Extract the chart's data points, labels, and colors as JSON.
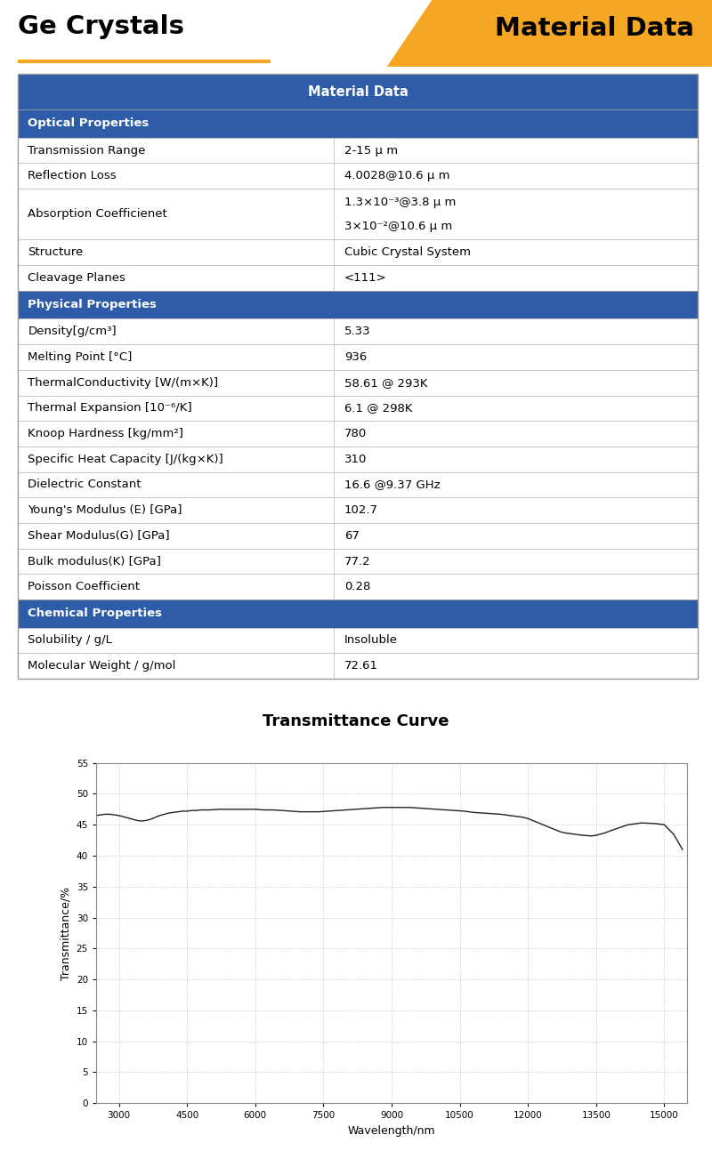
{
  "title_left": "Ge Crystals",
  "title_right": "Material Data",
  "header_bg": "#2e5ca8",
  "section_bg": "#2e5ca8",
  "orange_color": "#f5a623",
  "table_header": "Material Data",
  "sections": [
    {
      "name": "Optical Properties",
      "rows": [
        [
          "Transmission Range",
          "2-15 μ m"
        ],
        [
          "Reflection Loss",
          "4.0028@10.6 μ m"
        ],
        [
          "Absorption Coefficienet",
          "1.3×10⁻³@3.8 μ m\n3×10⁻²@10.6 μ m"
        ],
        [
          "Structure",
          "Cubic Crystal System"
        ],
        [
          "Cleavage Planes",
          "<111>"
        ]
      ]
    },
    {
      "name": "Physical Properties",
      "rows": [
        [
          "Density[g/cm³]",
          "5.33"
        ],
        [
          "Melting Point [°C]",
          "936"
        ],
        [
          "ThermalConductivity [W/(m×K)]",
          "58.61 @ 293K"
        ],
        [
          "Thermal Expansion [10⁻⁶/K]",
          "6.1 @ 298K"
        ],
        [
          "Knoop Hardness [kg/mm²]",
          "780"
        ],
        [
          "Specific Heat Capacity [J/(kg×K)]",
          "310"
        ],
        [
          "Dielectric Constant",
          "16.6 @9.37 GHz"
        ],
        [
          "Young's Modulus (E) [GPa]",
          "102.7"
        ],
        [
          "Shear Modulus(G) [GPa]",
          "67"
        ],
        [
          "Bulk modulus(K) [GPa]",
          "77.2"
        ],
        [
          "Poisson Coefficient",
          "0.28"
        ]
      ]
    },
    {
      "name": "Chemical Properties",
      "rows": [
        [
          "Solubility / g/L",
          "Insoluble"
        ],
        [
          "Molecular Weight / g/mol",
          "72.61"
        ]
      ]
    }
  ],
  "chart_title": "Transmittance Curve",
  "xlabel": "Wavelength/nm",
  "ylabel": "Transmittance/%",
  "xmin": 2500,
  "xmax": 15500,
  "xticks": [
    3000,
    4500,
    6000,
    7500,
    9000,
    10500,
    12000,
    13500,
    15000
  ],
  "ymin": 0,
  "ymax": 55,
  "yticks": [
    0,
    5,
    10,
    15,
    20,
    25,
    30,
    35,
    40,
    45,
    50,
    55
  ],
  "wavelength": [
    2500,
    2600,
    2700,
    2800,
    2900,
    3000,
    3100,
    3200,
    3300,
    3400,
    3500,
    3600,
    3700,
    3800,
    3900,
    4000,
    4100,
    4200,
    4300,
    4400,
    4500,
    4600,
    4700,
    4800,
    4900,
    5000,
    5200,
    5400,
    5600,
    5800,
    6000,
    6200,
    6400,
    6600,
    6800,
    7000,
    7200,
    7400,
    7600,
    7800,
    8000,
    8200,
    8400,
    8600,
    8800,
    9000,
    9200,
    9400,
    9600,
    9800,
    10000,
    10200,
    10400,
    10600,
    10800,
    11000,
    11200,
    11400,
    11600,
    11700,
    11800,
    11900,
    12000,
    12100,
    12200,
    12300,
    12400,
    12500,
    12600,
    12700,
    12800,
    13000,
    13200,
    13400,
    13500,
    13600,
    13700,
    13800,
    14000,
    14200,
    14500,
    14800,
    15000,
    15200,
    15400
  ],
  "transmittance": [
    46.5,
    46.6,
    46.7,
    46.7,
    46.6,
    46.5,
    46.3,
    46.1,
    45.9,
    45.7,
    45.6,
    45.7,
    45.9,
    46.2,
    46.5,
    46.7,
    46.9,
    47.0,
    47.1,
    47.2,
    47.2,
    47.3,
    47.3,
    47.4,
    47.4,
    47.4,
    47.5,
    47.5,
    47.5,
    47.5,
    47.5,
    47.4,
    47.4,
    47.3,
    47.2,
    47.1,
    47.1,
    47.1,
    47.2,
    47.3,
    47.4,
    47.5,
    47.6,
    47.7,
    47.8,
    47.8,
    47.8,
    47.8,
    47.7,
    47.6,
    47.5,
    47.4,
    47.3,
    47.2,
    47.0,
    46.9,
    46.8,
    46.7,
    46.5,
    46.4,
    46.3,
    46.2,
    46.0,
    45.7,
    45.4,
    45.1,
    44.8,
    44.5,
    44.2,
    43.9,
    43.7,
    43.5,
    43.3,
    43.2,
    43.3,
    43.5,
    43.7,
    44.0,
    44.5,
    45.0,
    45.3,
    45.2,
    45.0,
    43.5,
    41.0
  ]
}
